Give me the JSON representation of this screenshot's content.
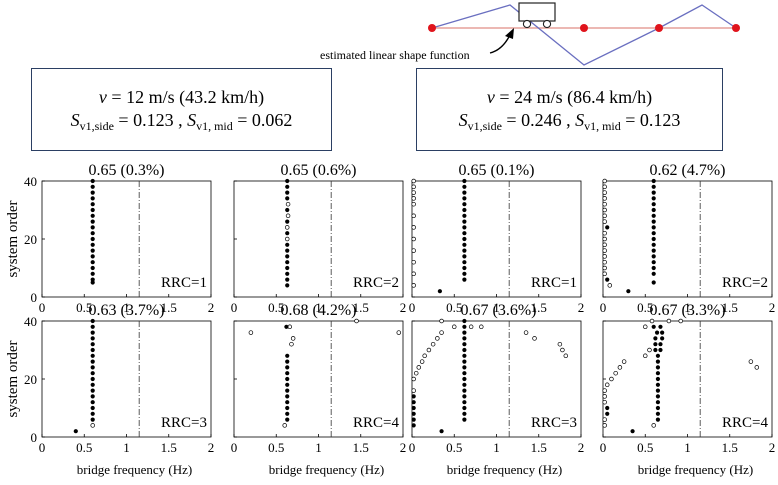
{
  "top_diagram": {
    "annotation": "estimated linear shape function"
  },
  "speed_boxes": [
    {
      "speed": "= 12 m/s (43.2 km/h)",
      "s_side_val": "= 0.123 ,",
      "s_mid_val": "= 0.062"
    },
    {
      "speed": "= 24 m/s (86.4 km/h)",
      "s_side_val": "= 0.246 ,",
      "s_mid_val": "= 0.123"
    }
  ],
  "symbols": {
    "v": "v",
    "S": "S",
    "sub_side": "v1,side",
    "sub_mid": "v1, mid"
  },
  "ylabel": "system order",
  "xlabel": "bridge frequency (Hz)",
  "chart_data": [
    {
      "type": "scatter",
      "title": "0.65 (0.3%)",
      "rrc": "RRC=1",
      "xlim": [
        0,
        2
      ],
      "ylim": [
        0,
        40
      ],
      "xticks": [
        "0",
        "0.5",
        "1",
        "1.5",
        "2"
      ],
      "yticks": [
        "0",
        "20",
        "40"
      ],
      "stable": [
        [
          0.6,
          5
        ],
        [
          0.6,
          6
        ],
        [
          0.6,
          8
        ],
        [
          0.6,
          10
        ],
        [
          0.6,
          12
        ],
        [
          0.6,
          14
        ],
        [
          0.6,
          16
        ],
        [
          0.6,
          18
        ],
        [
          0.6,
          20
        ],
        [
          0.6,
          22
        ],
        [
          0.6,
          24
        ],
        [
          0.6,
          26
        ],
        [
          0.6,
          28
        ],
        [
          0.6,
          30
        ],
        [
          0.6,
          32
        ],
        [
          0.6,
          34
        ],
        [
          0.6,
          36
        ],
        [
          0.6,
          38
        ],
        [
          0.6,
          40
        ]
      ],
      "unstable": [],
      "dashline_x": 1.15
    },
    {
      "type": "scatter",
      "title": "0.65 (0.6%)",
      "rrc": "RRC=2",
      "xlim": [
        0,
        2
      ],
      "ylim": [
        0,
        40
      ],
      "xticks": [
        "0",
        "0.5",
        "1",
        "1.5",
        "2"
      ],
      "yticks": [
        "0",
        "20",
        "40"
      ],
      "stable": [
        [
          0.63,
          4
        ],
        [
          0.63,
          6
        ],
        [
          0.63,
          8
        ],
        [
          0.63,
          10
        ],
        [
          0.63,
          12
        ],
        [
          0.63,
          14
        ],
        [
          0.63,
          16
        ],
        [
          0.63,
          18
        ],
        [
          0.63,
          22
        ],
        [
          0.63,
          26
        ],
        [
          0.63,
          30
        ],
        [
          0.63,
          34
        ],
        [
          0.63,
          36
        ],
        [
          0.63,
          38
        ],
        [
          0.63,
          40
        ]
      ],
      "unstable": [
        [
          0.63,
          20
        ],
        [
          0.63,
          24
        ],
        [
          0.64,
          28
        ],
        [
          0.64,
          32
        ]
      ],
      "dashline_x": 1.15
    },
    {
      "type": "scatter",
      "title": "0.65 (0.1%)",
      "rrc": "RRC=1",
      "xlim": [
        0,
        2
      ],
      "ylim": [
        0,
        40
      ],
      "xticks": [
        "0",
        "0.5",
        "1",
        "1.5",
        "2"
      ],
      "yticks": [
        "0",
        "20",
        "40"
      ],
      "stable": [
        [
          0.62,
          6
        ],
        [
          0.62,
          8
        ],
        [
          0.62,
          10
        ],
        [
          0.62,
          12
        ],
        [
          0.62,
          14
        ],
        [
          0.62,
          16
        ],
        [
          0.62,
          18
        ],
        [
          0.62,
          20
        ],
        [
          0.62,
          22
        ],
        [
          0.62,
          24
        ],
        [
          0.62,
          26
        ],
        [
          0.62,
          28
        ],
        [
          0.62,
          30
        ],
        [
          0.62,
          32
        ],
        [
          0.62,
          34
        ],
        [
          0.62,
          36
        ],
        [
          0.62,
          38
        ],
        [
          0.62,
          40
        ],
        [
          0.33,
          2
        ]
      ],
      "unstable": [
        [
          0.02,
          4
        ],
        [
          0.02,
          8
        ],
        [
          0.02,
          12
        ],
        [
          0.02,
          16
        ],
        [
          0.02,
          20
        ],
        [
          0.02,
          24
        ],
        [
          0.02,
          28
        ],
        [
          0.02,
          32
        ],
        [
          0.02,
          34
        ],
        [
          0.02,
          36
        ],
        [
          0.02,
          38
        ],
        [
          0.02,
          40
        ]
      ],
      "dashline_x": 1.15
    },
    {
      "type": "scatter",
      "title": "0.62 (4.7%)",
      "rrc": "RRC=2",
      "xlim": [
        0,
        2
      ],
      "ylim": [
        0,
        40
      ],
      "xticks": [
        "0",
        "0.5",
        "1",
        "1.5",
        "2"
      ],
      "yticks": [
        "0",
        "20",
        "40"
      ],
      "stable": [
        [
          0.6,
          5
        ],
        [
          0.6,
          8
        ],
        [
          0.6,
          10
        ],
        [
          0.6,
          12
        ],
        [
          0.6,
          14
        ],
        [
          0.6,
          16
        ],
        [
          0.6,
          18
        ],
        [
          0.6,
          20
        ],
        [
          0.6,
          22
        ],
        [
          0.6,
          24
        ],
        [
          0.6,
          26
        ],
        [
          0.6,
          28
        ],
        [
          0.6,
          30
        ],
        [
          0.6,
          32
        ],
        [
          0.6,
          34
        ],
        [
          0.6,
          36
        ],
        [
          0.6,
          38
        ],
        [
          0.6,
          40
        ],
        [
          0.05,
          6
        ],
        [
          0.05,
          24
        ],
        [
          0.3,
          2
        ]
      ],
      "unstable": [
        [
          0.02,
          8
        ],
        [
          0.02,
          10
        ],
        [
          0.02,
          12
        ],
        [
          0.02,
          14
        ],
        [
          0.02,
          16
        ],
        [
          0.02,
          18
        ],
        [
          0.02,
          20
        ],
        [
          0.02,
          22
        ],
        [
          0.02,
          26
        ],
        [
          0.02,
          28
        ],
        [
          0.02,
          30
        ],
        [
          0.02,
          32
        ],
        [
          0.02,
          34
        ],
        [
          0.02,
          36
        ],
        [
          0.02,
          38
        ],
        [
          0.02,
          40
        ],
        [
          0.08,
          4
        ]
      ],
      "dashline_x": 1.15
    },
    {
      "type": "scatter",
      "title": "0.63 (3.7%)",
      "rrc": "RRC=3",
      "xlim": [
        0,
        2
      ],
      "ylim": [
        0,
        40
      ],
      "xticks": [
        "0",
        "0.5",
        "1",
        "1.5",
        "2"
      ],
      "yticks": [
        "0",
        "20",
        "40"
      ],
      "stable": [
        [
          0.6,
          6
        ],
        [
          0.6,
          8
        ],
        [
          0.6,
          10
        ],
        [
          0.6,
          12
        ],
        [
          0.6,
          14
        ],
        [
          0.6,
          16
        ],
        [
          0.6,
          18
        ],
        [
          0.6,
          20
        ],
        [
          0.6,
          22
        ],
        [
          0.6,
          24
        ],
        [
          0.6,
          26
        ],
        [
          0.6,
          28
        ],
        [
          0.6,
          30
        ],
        [
          0.6,
          32
        ],
        [
          0.6,
          34
        ],
        [
          0.6,
          36
        ],
        [
          0.6,
          38
        ],
        [
          0.6,
          40
        ],
        [
          0.4,
          2
        ]
      ],
      "unstable": [
        [
          0.6,
          4
        ]
      ],
      "dashline_x": 1.15
    },
    {
      "type": "scatter",
      "title": "0.68 (4.2%)",
      "rrc": "RRC=4",
      "xlim": [
        0,
        2
      ],
      "ylim": [
        0,
        40
      ],
      "xticks": [
        "0",
        "0.5",
        "1",
        "1.5",
        "2"
      ],
      "yticks": [
        "0",
        "20",
        "40"
      ],
      "stable": [
        [
          0.63,
          6
        ],
        [
          0.63,
          8
        ],
        [
          0.63,
          10
        ],
        [
          0.63,
          12
        ],
        [
          0.63,
          14
        ],
        [
          0.63,
          16
        ],
        [
          0.63,
          18
        ],
        [
          0.63,
          20
        ],
        [
          0.63,
          22
        ],
        [
          0.63,
          24
        ],
        [
          0.63,
          26
        ],
        [
          0.63,
          28
        ],
        [
          0.62,
          38
        ]
      ],
      "unstable": [
        [
          0.2,
          36
        ],
        [
          0.6,
          4
        ],
        [
          0.68,
          32
        ],
        [
          0.7,
          34
        ],
        [
          0.66,
          38
        ],
        [
          1.45,
          40
        ],
        [
          1.95,
          36
        ]
      ],
      "dashline_x": 1.15
    },
    {
      "type": "scatter",
      "title": "0.67 (3.6%)",
      "rrc": "RRC=3",
      "xlim": [
        0,
        2
      ],
      "ylim": [
        0,
        40
      ],
      "xticks": [
        "0",
        "0.5",
        "1",
        "1.5",
        "2"
      ],
      "yticks": [
        "0",
        "20",
        "40"
      ],
      "stable": [
        [
          0.62,
          6
        ],
        [
          0.62,
          8
        ],
        [
          0.62,
          10
        ],
        [
          0.62,
          12
        ],
        [
          0.62,
          14
        ],
        [
          0.62,
          16
        ],
        [
          0.62,
          18
        ],
        [
          0.62,
          20
        ],
        [
          0.62,
          22
        ],
        [
          0.62,
          24
        ],
        [
          0.62,
          26
        ],
        [
          0.62,
          28
        ],
        [
          0.62,
          30
        ],
        [
          0.62,
          32
        ],
        [
          0.62,
          34
        ],
        [
          0.62,
          36
        ],
        [
          0.62,
          38
        ],
        [
          0.62,
          40
        ],
        [
          0.02,
          4
        ],
        [
          0.02,
          6
        ],
        [
          0.02,
          8
        ],
        [
          0.02,
          10
        ],
        [
          0.02,
          12
        ],
        [
          0.02,
          14
        ],
        [
          0.35,
          2
        ]
      ],
      "unstable": [
        [
          0.02,
          16
        ],
        [
          0.02,
          20
        ],
        [
          0.05,
          22
        ],
        [
          0.08,
          24
        ],
        [
          0.12,
          26
        ],
        [
          0.15,
          28
        ],
        [
          0.2,
          30
        ],
        [
          0.25,
          32
        ],
        [
          0.3,
          34
        ],
        [
          0.35,
          36
        ],
        [
          0.5,
          38
        ],
        [
          0.7,
          38
        ],
        [
          0.82,
          38
        ],
        [
          1.35,
          36
        ],
        [
          1.45,
          34
        ],
        [
          1.75,
          32
        ],
        [
          1.78,
          30
        ],
        [
          1.82,
          28
        ],
        [
          0.35,
          40
        ]
      ],
      "dashline_x": 1.15
    },
    {
      "type": "scatter",
      "title": "0.67 (3.3%)",
      "rrc": "RRC=4",
      "xlim": [
        0,
        2
      ],
      "ylim": [
        0,
        40
      ],
      "xticks": [
        "0",
        "0.5",
        "1",
        "1.5",
        "2"
      ],
      "yticks": [
        "0",
        "20",
        "40"
      ],
      "stable": [
        [
          0.65,
          6
        ],
        [
          0.65,
          8
        ],
        [
          0.65,
          10
        ],
        [
          0.65,
          12
        ],
        [
          0.65,
          14
        ],
        [
          0.65,
          16
        ],
        [
          0.65,
          18
        ],
        [
          0.65,
          20
        ],
        [
          0.65,
          22
        ],
        [
          0.65,
          24
        ],
        [
          0.65,
          26
        ],
        [
          0.65,
          28
        ],
        [
          0.62,
          30
        ],
        [
          0.68,
          30
        ],
        [
          0.62,
          32
        ],
        [
          0.68,
          32
        ],
        [
          0.62,
          34
        ],
        [
          0.7,
          34
        ],
        [
          0.64,
          36
        ],
        [
          0.7,
          36
        ],
        [
          0.6,
          38
        ],
        [
          0.68,
          38
        ],
        [
          0.05,
          8
        ],
        [
          0.05,
          10
        ],
        [
          0.35,
          2
        ]
      ],
      "unstable": [
        [
          0.02,
          4
        ],
        [
          0.02,
          6
        ],
        [
          0.02,
          12
        ],
        [
          0.02,
          14
        ],
        [
          0.02,
          16
        ],
        [
          0.05,
          18
        ],
        [
          0.1,
          20
        ],
        [
          0.15,
          22
        ],
        [
          0.2,
          24
        ],
        [
          0.25,
          26
        ],
        [
          0.5,
          28
        ],
        [
          0.55,
          30
        ],
        [
          0.5,
          38
        ],
        [
          0.58,
          40
        ],
        [
          0.78,
          40
        ],
        [
          0.6,
          4
        ],
        [
          1.75,
          26
        ],
        [
          1.82,
          24
        ],
        [
          0.92,
          40
        ]
      ],
      "dashline_x": 1.15
    }
  ]
}
